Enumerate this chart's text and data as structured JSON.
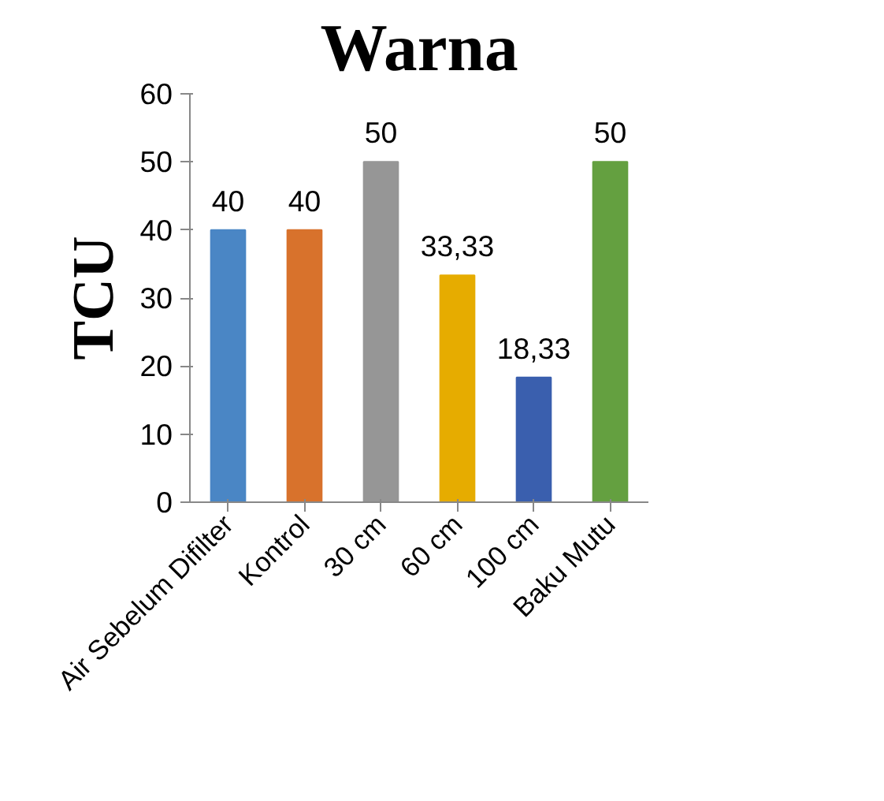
{
  "chart_data": {
    "type": "bar",
    "title": "Warna",
    "ylabel": "TCU",
    "categories": [
      "Air Sebelum Difilter",
      "Kontrol",
      "30 cm",
      "60 cm",
      "100 cm",
      "Baku Mutu"
    ],
    "values": [
      40,
      40,
      50,
      33.33,
      18.33,
      50
    ],
    "value_labels": [
      "40",
      "40",
      "50",
      "33,33",
      "18,33",
      "50"
    ],
    "colors": [
      "#4a86c5",
      "#d8722c",
      "#969696",
      "#e6ac00",
      "#3a5fae",
      "#64a040"
    ],
    "ylim": [
      0,
      60
    ],
    "yticks": [
      0,
      10,
      20,
      30,
      40,
      50,
      60
    ],
    "grid": false
  }
}
